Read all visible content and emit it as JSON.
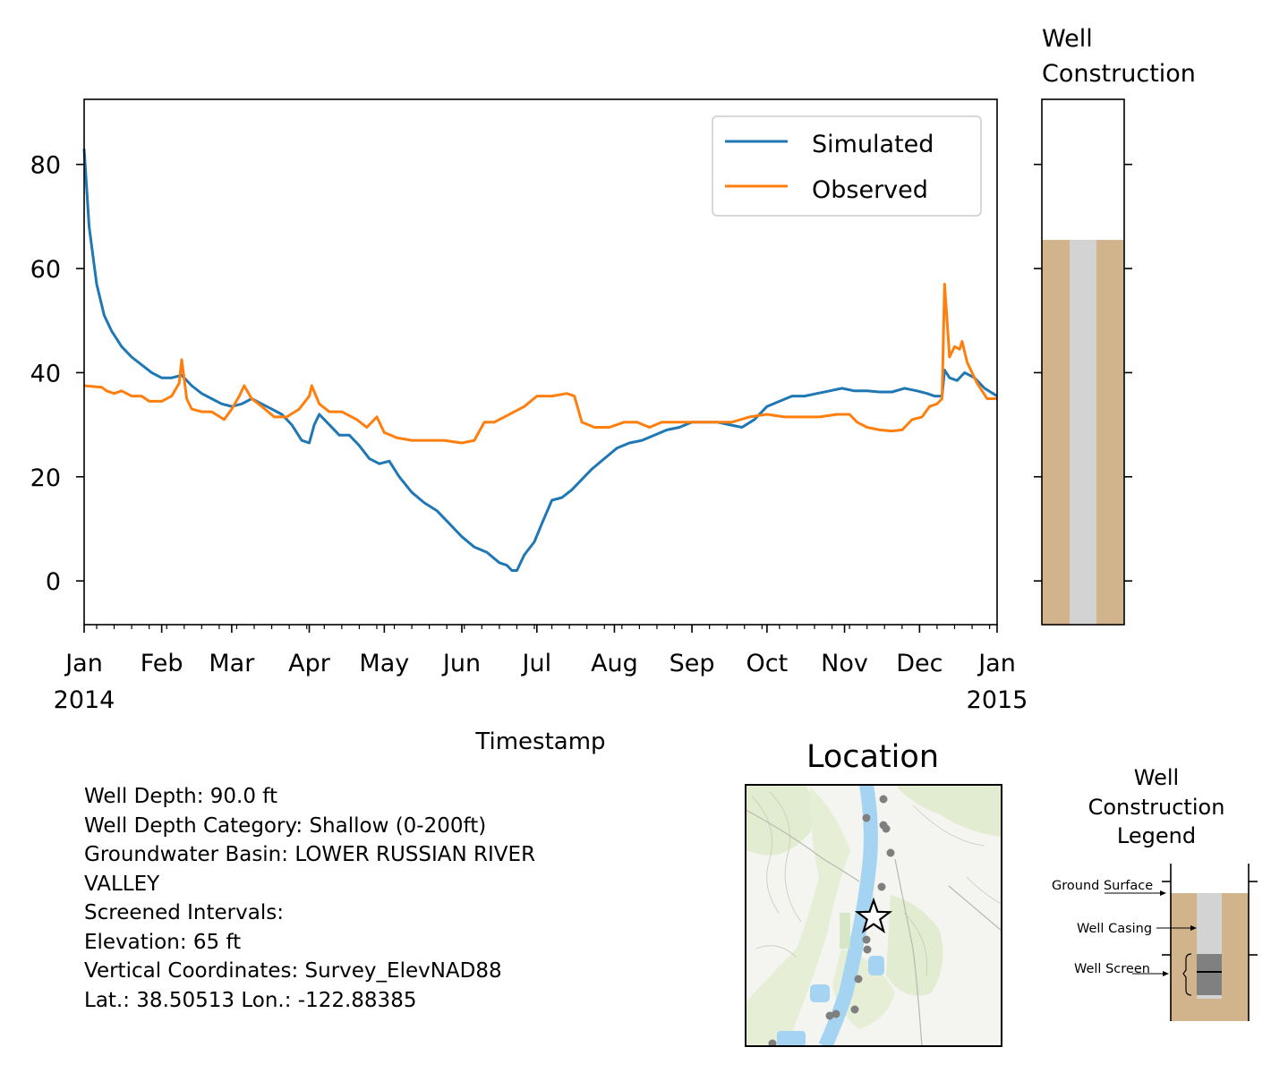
{
  "chart_data": [
    {
      "type": "line",
      "xlabel": "Timestamp",
      "ylabel": "",
      "ylim": [
        -8.4,
        92.5
      ],
      "xlim": [
        "2014-01-01",
        "2015-01-01"
      ],
      "yticks": [
        0,
        20,
        40,
        60,
        80
      ],
      "ytick_labels": [
        "0",
        "20",
        "40",
        "60",
        "80"
      ],
      "month_ticks": [
        {
          "date": "2014-01-01",
          "label": "Jan",
          "sub": "2014"
        },
        {
          "date": "2014-02-01",
          "label": "Feb",
          "sub": ""
        },
        {
          "date": "2014-03-01",
          "label": "Mar",
          "sub": ""
        },
        {
          "date": "2014-04-01",
          "label": "Apr",
          "sub": ""
        },
        {
          "date": "2014-05-01",
          "label": "May",
          "sub": ""
        },
        {
          "date": "2014-06-01",
          "label": "Jun",
          "sub": ""
        },
        {
          "date": "2014-07-01",
          "label": "Jul",
          "sub": ""
        },
        {
          "date": "2014-08-01",
          "label": "Aug",
          "sub": ""
        },
        {
          "date": "2014-09-01",
          "label": "Sep",
          "sub": ""
        },
        {
          "date": "2014-10-01",
          "label": "Oct",
          "sub": ""
        },
        {
          "date": "2014-11-01",
          "label": "Nov",
          "sub": ""
        },
        {
          "date": "2014-12-01",
          "label": "Dec",
          "sub": ""
        },
        {
          "date": "2015-01-01",
          "label": "Jan",
          "sub": "2015"
        }
      ],
      "legend_position": "top-right",
      "grid": false,
      "series": [
        {
          "name": "Simulated",
          "color": "#1f77b4",
          "points": [
            [
              "2014-01-01",
              83
            ],
            [
              "2014-01-03",
              68
            ],
            [
              "2014-01-06",
              57
            ],
            [
              "2014-01-09",
              51
            ],
            [
              "2014-01-12",
              48
            ],
            [
              "2014-01-16",
              45
            ],
            [
              "2014-01-20",
              43
            ],
            [
              "2014-01-24",
              41.5
            ],
            [
              "2014-01-28",
              40
            ],
            [
              "2014-02-01",
              39
            ],
            [
              "2014-02-05",
              39
            ],
            [
              "2014-02-09",
              39.5
            ],
            [
              "2014-02-13",
              37.5
            ],
            [
              "2014-02-17",
              36
            ],
            [
              "2014-02-21",
              35
            ],
            [
              "2014-02-25",
              34
            ],
            [
              "2014-03-01",
              33.5
            ],
            [
              "2014-03-05",
              34
            ],
            [
              "2014-03-09",
              35
            ],
            [
              "2014-03-13",
              34
            ],
            [
              "2014-03-17",
              33
            ],
            [
              "2014-03-21",
              32
            ],
            [
              "2014-03-25",
              30
            ],
            [
              "2014-03-29",
              27
            ],
            [
              "2014-04-01",
              26.5
            ],
            [
              "2014-04-03",
              30
            ],
            [
              "2014-04-05",
              32
            ],
            [
              "2014-04-09",
              30
            ],
            [
              "2014-04-13",
              28
            ],
            [
              "2014-04-17",
              28
            ],
            [
              "2014-04-21",
              26
            ],
            [
              "2014-04-25",
              23.5
            ],
            [
              "2014-04-29",
              22.5
            ],
            [
              "2014-05-03",
              23
            ],
            [
              "2014-05-07",
              20
            ],
            [
              "2014-05-12",
              17
            ],
            [
              "2014-05-17",
              15
            ],
            [
              "2014-05-22",
              13.5
            ],
            [
              "2014-05-27",
              11
            ],
            [
              "2014-06-01",
              8.5
            ],
            [
              "2014-06-06",
              6.5
            ],
            [
              "2014-06-11",
              5.5
            ],
            [
              "2014-06-16",
              3.5
            ],
            [
              "2014-06-19",
              3
            ],
            [
              "2014-06-21",
              2
            ],
            [
              "2014-06-23",
              2
            ],
            [
              "2014-06-26",
              5
            ],
            [
              "2014-06-30",
              7.5
            ],
            [
              "2014-07-03",
              11
            ],
            [
              "2014-07-07",
              15.5
            ],
            [
              "2014-07-11",
              16
            ],
            [
              "2014-07-15",
              17.5
            ],
            [
              "2014-07-19",
              19.5
            ],
            [
              "2014-07-23",
              21.5
            ],
            [
              "2014-07-28",
              23.5
            ],
            [
              "2014-08-02",
              25.5
            ],
            [
              "2014-08-07",
              26.5
            ],
            [
              "2014-08-12",
              27
            ],
            [
              "2014-08-17",
              28
            ],
            [
              "2014-08-22",
              29
            ],
            [
              "2014-08-27",
              29.5
            ],
            [
              "2014-09-01",
              30.5
            ],
            [
              "2014-09-06",
              30.5
            ],
            [
              "2014-09-11",
              30.5
            ],
            [
              "2014-09-16",
              30
            ],
            [
              "2014-09-21",
              29.5
            ],
            [
              "2014-09-26",
              31
            ],
            [
              "2014-10-01",
              33.5
            ],
            [
              "2014-10-06",
              34.5
            ],
            [
              "2014-10-11",
              35.5
            ],
            [
              "2014-10-16",
              35.5
            ],
            [
              "2014-10-21",
              36
            ],
            [
              "2014-10-26",
              36.5
            ],
            [
              "2014-10-31",
              37
            ],
            [
              "2014-11-05",
              36.5
            ],
            [
              "2014-11-10",
              36.5
            ],
            [
              "2014-11-15",
              36.3
            ],
            [
              "2014-11-20",
              36.3
            ],
            [
              "2014-11-25",
              37
            ],
            [
              "2014-11-30",
              36.5
            ],
            [
              "2014-12-04",
              36
            ],
            [
              "2014-12-07",
              35.5
            ],
            [
              "2014-12-10",
              35.5
            ],
            [
              "2014-12-11",
              40.5
            ],
            [
              "2014-12-13",
              39
            ],
            [
              "2014-12-16",
              38.5
            ],
            [
              "2014-12-19",
              40
            ],
            [
              "2014-12-23",
              39
            ],
            [
              "2014-12-27",
              37
            ],
            [
              "2015-01-01",
              35.5
            ]
          ]
        },
        {
          "name": "Observed",
          "color": "#ff7f0e",
          "points": [
            [
              "2014-01-01",
              37.5
            ],
            [
              "2014-01-08",
              37.2
            ],
            [
              "2014-01-10",
              36.5
            ],
            [
              "2014-01-13",
              36
            ],
            [
              "2014-01-16",
              36.5
            ],
            [
              "2014-01-20",
              35.5
            ],
            [
              "2014-01-24",
              35.5
            ],
            [
              "2014-01-27",
              34.5
            ],
            [
              "2014-02-01",
              34.5
            ],
            [
              "2014-02-05",
              35.5
            ],
            [
              "2014-02-08",
              38
            ],
            [
              "2014-02-09",
              42.5
            ],
            [
              "2014-02-11",
              35
            ],
            [
              "2014-02-13",
              33
            ],
            [
              "2014-02-17",
              32.5
            ],
            [
              "2014-02-21",
              32.5
            ],
            [
              "2014-02-26",
              31
            ],
            [
              "2014-03-01",
              33
            ],
            [
              "2014-03-04",
              35.5
            ],
            [
              "2014-03-06",
              37.5
            ],
            [
              "2014-03-09",
              35
            ],
            [
              "2014-03-13",
              33.5
            ],
            [
              "2014-03-18",
              31.5
            ],
            [
              "2014-03-23",
              31.5
            ],
            [
              "2014-03-28",
              33
            ],
            [
              "2014-04-01",
              35.5
            ],
            [
              "2014-04-02",
              37.5
            ],
            [
              "2014-04-05",
              34
            ],
            [
              "2014-04-09",
              32.5
            ],
            [
              "2014-04-14",
              32.5
            ],
            [
              "2014-04-20",
              31
            ],
            [
              "2014-04-24",
              29.5
            ],
            [
              "2014-04-28",
              31.5
            ],
            [
              "2014-05-01",
              28.5
            ],
            [
              "2014-05-06",
              27.5
            ],
            [
              "2014-05-12",
              27
            ],
            [
              "2014-05-18",
              27
            ],
            [
              "2014-05-25",
              27
            ],
            [
              "2014-06-01",
              26.5
            ],
            [
              "2014-06-06",
              27
            ],
            [
              "2014-06-10",
              30.5
            ],
            [
              "2014-06-14",
              30.5
            ],
            [
              "2014-06-18",
              31.5
            ],
            [
              "2014-06-22",
              32.5
            ],
            [
              "2014-06-26",
              33.5
            ],
            [
              "2014-07-01",
              35.5
            ],
            [
              "2014-07-07",
              35.5
            ],
            [
              "2014-07-13",
              36
            ],
            [
              "2014-07-16",
              35.5
            ],
            [
              "2014-07-19",
              30.5
            ],
            [
              "2014-07-24",
              29.5
            ],
            [
              "2014-07-30",
              29.5
            ],
            [
              "2014-08-05",
              30.5
            ],
            [
              "2014-08-10",
              30.5
            ],
            [
              "2014-08-15",
              29.5
            ],
            [
              "2014-08-20",
              30.5
            ],
            [
              "2014-08-27",
              30.5
            ],
            [
              "2014-09-03",
              30.5
            ],
            [
              "2014-09-10",
              30.5
            ],
            [
              "2014-09-17",
              30.5
            ],
            [
              "2014-09-24",
              31.5
            ],
            [
              "2014-10-01",
              32
            ],
            [
              "2014-10-08",
              31.5
            ],
            [
              "2014-10-15",
              31.5
            ],
            [
              "2014-10-22",
              31.5
            ],
            [
              "2014-10-29",
              32
            ],
            [
              "2014-11-03",
              32
            ],
            [
              "2014-11-06",
              30.5
            ],
            [
              "2014-11-10",
              29.5
            ],
            [
              "2014-11-15",
              29
            ],
            [
              "2014-11-20",
              28.8
            ],
            [
              "2014-11-24",
              29
            ],
            [
              "2014-11-28",
              31
            ],
            [
              "2014-12-02",
              31.5
            ],
            [
              "2014-12-05",
              33.5
            ],
            [
              "2014-12-08",
              34
            ],
            [
              "2014-12-10",
              35
            ],
            [
              "2014-12-11",
              57
            ],
            [
              "2014-12-13",
              43
            ],
            [
              "2014-12-15",
              45
            ],
            [
              "2014-12-17",
              44.5
            ],
            [
              "2014-12-18",
              46
            ],
            [
              "2014-12-20",
              42
            ],
            [
              "2014-12-24",
              38
            ],
            [
              "2014-12-28",
              35
            ],
            [
              "2015-01-01",
              35
            ]
          ]
        }
      ]
    },
    {
      "type": "bar",
      "title": "Well\nConstruction",
      "description_layers": [
        {
          "name": "above-ground",
          "from": 92.5,
          "to": 65.5,
          "color": "#ffffff"
        },
        {
          "name": "borehole-fill",
          "from": 65.5,
          "to": -8.4,
          "color": "#d2b48c"
        },
        {
          "name": "well-casing",
          "from": 65.5,
          "to": -8.4,
          "color": "#d3d3d3"
        }
      ],
      "ground_surface_elevation": 65.5,
      "ylim": [
        -8.4,
        92.5
      ],
      "yticks": [
        0,
        20,
        40,
        60,
        80
      ]
    }
  ],
  "info": {
    "lines": [
      "Well Depth: 90.0 ft",
      "Well Depth Category: Shallow (0-200ft)",
      "Groundwater Basin: LOWER RUSSIAN RIVER",
      "VALLEY",
      "Screened Intervals:",
      "Elevation: 65 ft",
      "Vertical Coordinates: Survey_ElevNAD88",
      "Lat.: 38.50513 Lon.: -122.88385"
    ]
  },
  "location_map": {
    "title": "Location",
    "well_marker": "star-icon",
    "nearby_wells": "gray-dot",
    "river_color": "#a5d4f3",
    "land_color": "#f4f4f1",
    "vegetation_color": "#e2ecd0"
  },
  "legend_panel": {
    "title_lines": [
      "Well",
      "Construction",
      "Legend"
    ],
    "ground_surface_label": "Ground Surface",
    "well_casing_label": "Well Casing",
    "well_screen_label": "Well Screen"
  }
}
